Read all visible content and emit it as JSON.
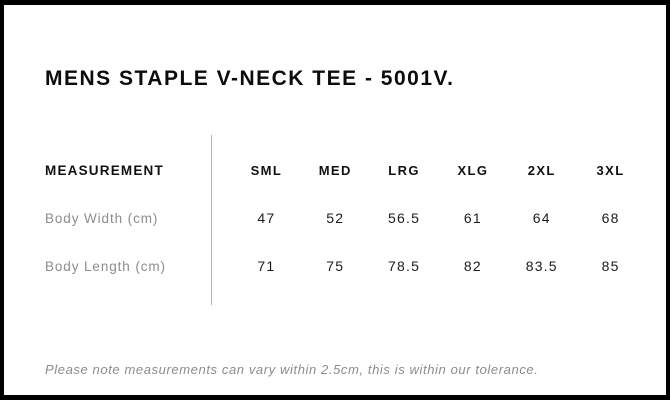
{
  "page": {
    "title": "MENS STAPLE V-NECK TEE - 5001V.",
    "note": "Please note measurements can vary within 2.5cm, this is within our tolerance."
  },
  "size_chart": {
    "row_header": "MEASUREMENT",
    "columns": [
      "SML",
      "MED",
      "LRG",
      "XLG",
      "2XL",
      "3XL"
    ],
    "rows": [
      {
        "label": "Body Width (cm)",
        "values": [
          "47",
          "52",
          "56.5",
          "61",
          "64",
          "68"
        ]
      },
      {
        "label": "Body Length (cm)",
        "values": [
          "71",
          "75",
          "78.5",
          "82",
          "83.5",
          "85"
        ]
      }
    ]
  },
  "chart_data": {
    "type": "table",
    "title": "MENS STAPLE V-NECK TEE - 5001V.",
    "columns": [
      "MEASUREMENT",
      "SML",
      "MED",
      "LRG",
      "XLG",
      "2XL",
      "3XL"
    ],
    "rows": [
      [
        "Body Width (cm)",
        47,
        52,
        56.5,
        61,
        64,
        68
      ],
      [
        "Body Length (cm)",
        71,
        75,
        78.5,
        82,
        83.5,
        85
      ]
    ],
    "footnote": "Please note measurements can vary within 2.5cm, this is within our tolerance."
  },
  "colors": {
    "frame_border": "#000000",
    "heading_text": "#0c0c0c",
    "header_text": "#111111",
    "value_text": "#1c1c1c",
    "muted_text": "#8c8c8c",
    "divider": "#b3b3b3",
    "background": "#ffffff"
  }
}
